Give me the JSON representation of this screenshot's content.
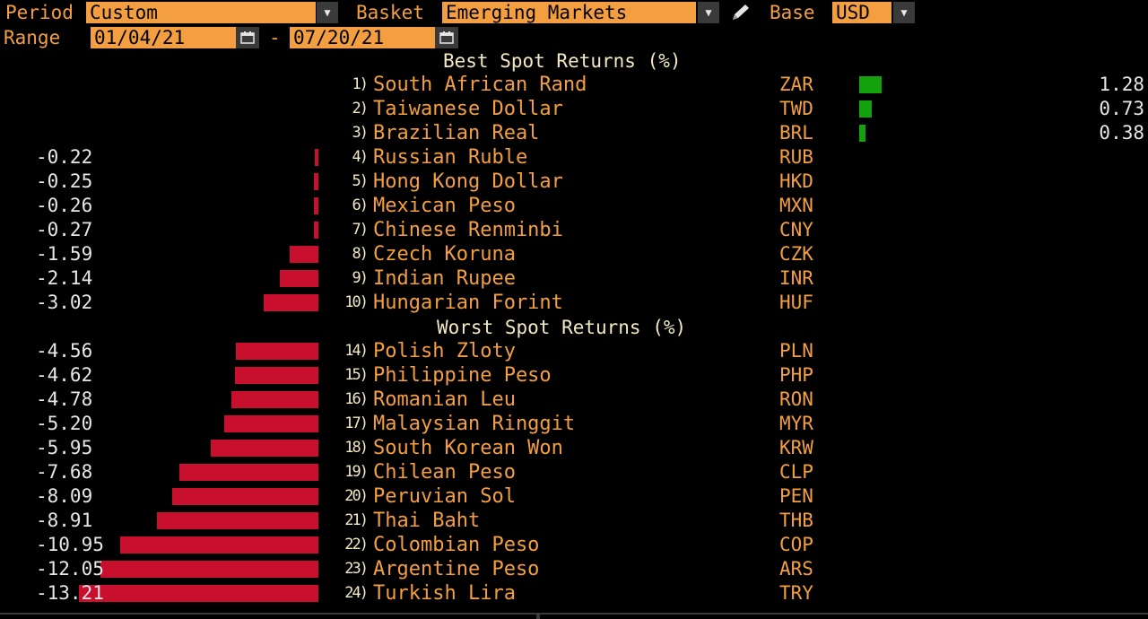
{
  "header": {
    "period_label": "Period",
    "period_value": "Custom",
    "basket_label": "Basket",
    "basket_value": "Emerging Markets",
    "base_label": "Base",
    "base_value": "USD",
    "range_label": "Range",
    "range_start": "01/04/21",
    "range_separator": "-",
    "range_end": "07/20/21"
  },
  "best": {
    "title": "Best Spot Returns (%)",
    "rows": [
      {
        "rank": "1)",
        "name": "South African Rand",
        "code": "ZAR",
        "value": "1.28"
      },
      {
        "rank": "2)",
        "name": "Taiwanese Dollar",
        "code": "TWD",
        "value": "0.73"
      },
      {
        "rank": "3)",
        "name": "Brazilian Real",
        "code": "BRL",
        "value": "0.38"
      },
      {
        "rank": "4)",
        "name": "Russian Ruble",
        "code": "RUB",
        "value": "-0.22"
      },
      {
        "rank": "5)",
        "name": "Hong Kong Dollar",
        "code": "HKD",
        "value": "-0.25"
      },
      {
        "rank": "6)",
        "name": "Mexican Peso",
        "code": "MXN",
        "value": "-0.26"
      },
      {
        "rank": "7)",
        "name": "Chinese Renminbi",
        "code": "CNY",
        "value": "-0.27"
      },
      {
        "rank": "8)",
        "name": "Czech Koruna",
        "code": "CZK",
        "value": "-1.59"
      },
      {
        "rank": "9)",
        "name": "Indian Rupee",
        "code": "INR",
        "value": "-2.14"
      },
      {
        "rank": "10)",
        "name": "Hungarian Forint",
        "code": "HUF",
        "value": "-3.02"
      }
    ]
  },
  "worst": {
    "title": "Worst Spot Returns (%)",
    "rows": [
      {
        "rank": "14)",
        "name": "Polish Zloty",
        "code": "PLN",
        "value": "-4.56"
      },
      {
        "rank": "15)",
        "name": "Philippine Peso",
        "code": "PHP",
        "value": "-4.62"
      },
      {
        "rank": "16)",
        "name": "Romanian Leu",
        "code": "RON",
        "value": "-4.78"
      },
      {
        "rank": "17)",
        "name": "Malaysian Ringgit",
        "code": "MYR",
        "value": "-5.20"
      },
      {
        "rank": "18)",
        "name": "South Korean Won",
        "code": "KRW",
        "value": "-5.95"
      },
      {
        "rank": "19)",
        "name": "Chilean Peso",
        "code": "CLP",
        "value": "-7.68"
      },
      {
        "rank": "20)",
        "name": "Peruvian Sol",
        "code": "PEN",
        "value": "-8.09"
      },
      {
        "rank": "21)",
        "name": "Thai Baht",
        "code": "THB",
        "value": "-8.91"
      },
      {
        "rank": "22)",
        "name": "Colombian Peso",
        "code": "COP",
        "value": "-10.95"
      },
      {
        "rank": "23)",
        "name": "Argentine Peso",
        "code": "ARS",
        "value": "-12.05"
      },
      {
        "rank": "24)",
        "name": "Turkish Lira",
        "code": "TRY",
        "value": "-13.21"
      }
    ]
  },
  "icons": {
    "dropdown": "chevron-down-icon",
    "calendar": "calendar-icon",
    "edit": "pencil-icon"
  },
  "colors": {
    "amber": "#f39f41",
    "title": "#f3e9c4",
    "positive_bar": "#13a10e",
    "negative_bar": "#c8102e",
    "value_text": "#e6e6e6"
  }
}
